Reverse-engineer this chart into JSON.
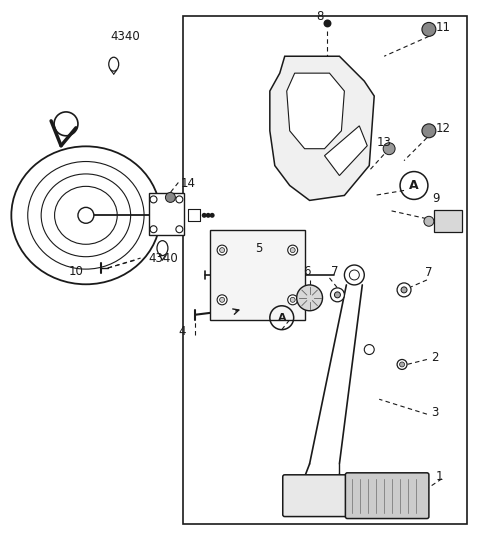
{
  "bg_color": "#ffffff",
  "line_color": "#1a1a1a",
  "gray_color": "#666666",
  "fig_width": 4.8,
  "fig_height": 5.4,
  "dpi": 100
}
